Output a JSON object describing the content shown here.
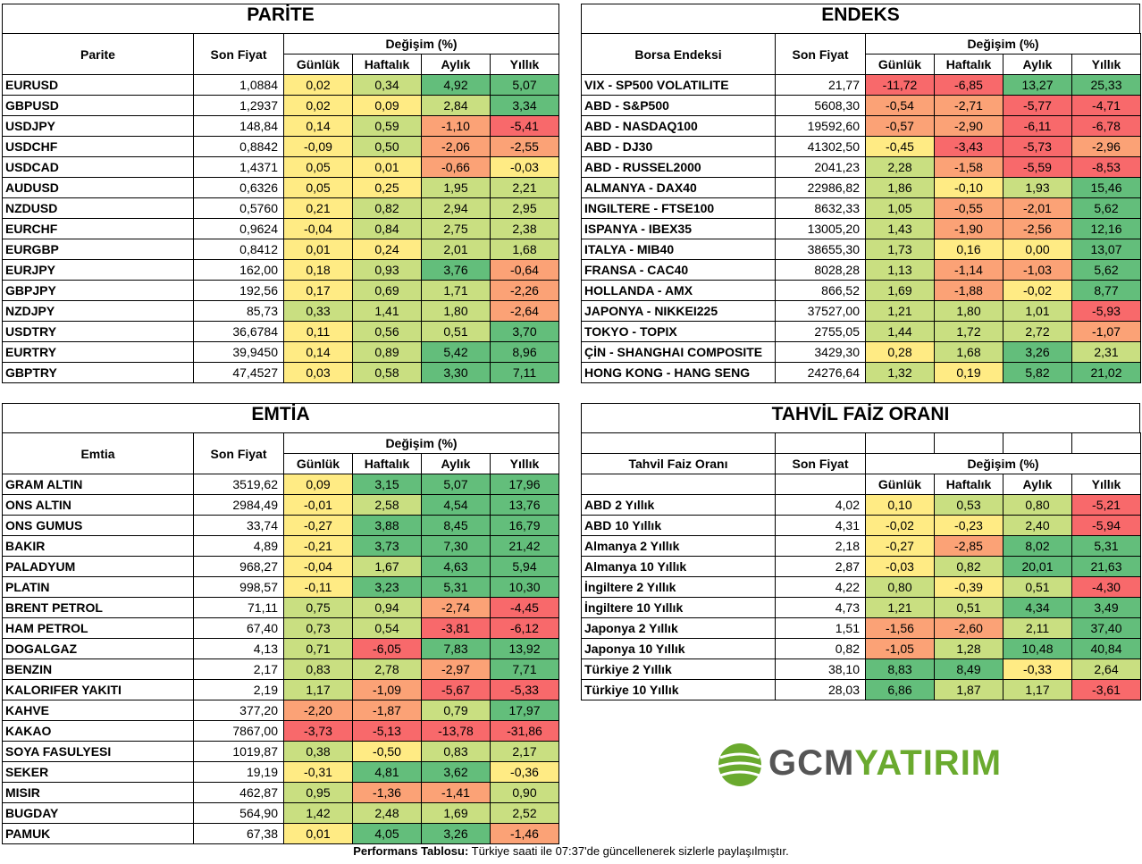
{
  "parite": {
    "title": "PARİTE",
    "headers": {
      "name": "Parite",
      "price": "Son Fiyat",
      "change": "Değişim (%)",
      "d": "Günlük",
      "w": "Haftalık",
      "m": "Aylık",
      "y": "Yıllık"
    },
    "rows": [
      [
        "EURUSD",
        "1,0884",
        "0,02",
        "0,34",
        "4,92",
        "5,07"
      ],
      [
        "GBPUSD",
        "1,2937",
        "0,02",
        "0,09",
        "2,84",
        "3,34"
      ],
      [
        "USDJPY",
        "148,84",
        "0,14",
        "0,59",
        "-1,10",
        "-5,41"
      ],
      [
        "USDCHF",
        "0,8842",
        "-0,09",
        "0,50",
        "-2,06",
        "-2,55"
      ],
      [
        "USDCAD",
        "1,4371",
        "0,05",
        "0,01",
        "-0,66",
        "-0,03"
      ],
      [
        "AUDUSD",
        "0,6326",
        "0,05",
        "0,25",
        "1,95",
        "2,21"
      ],
      [
        "NZDUSD",
        "0,5760",
        "0,21",
        "0,82",
        "2,94",
        "2,95"
      ],
      [
        "EURCHF",
        "0,9624",
        "-0,04",
        "0,84",
        "2,75",
        "2,38"
      ],
      [
        "EURGBP",
        "0,8412",
        "0,01",
        "0,24",
        "2,01",
        "1,68"
      ],
      [
        "EURJPY",
        "162,00",
        "0,18",
        "0,93",
        "3,76",
        "-0,64"
      ],
      [
        "GBPJPY",
        "192,56",
        "0,17",
        "0,69",
        "1,71",
        "-2,26"
      ],
      [
        "NZDJPY",
        "85,73",
        "0,33",
        "1,41",
        "1,80",
        "-2,64"
      ],
      [
        "USDTRY",
        "36,6784",
        "0,11",
        "0,56",
        "0,51",
        "3,70"
      ],
      [
        "EURTRY",
        "39,9450",
        "0,14",
        "0,89",
        "5,42",
        "8,96"
      ],
      [
        "GBPTRY",
        "47,4527",
        "0,03",
        "0,58",
        "3,30",
        "7,11"
      ]
    ]
  },
  "endeks": {
    "title": "ENDEKS",
    "headers": {
      "name": "Borsa Endeksi",
      "price": "Son Fiyat",
      "change": "Değişim (%)",
      "d": "Günlük",
      "w": "Haftalık",
      "m": "Aylık",
      "y": "Yıllık"
    },
    "rows": [
      [
        "VIX  - SP500 VOLATILITE",
        "21,77",
        "-11,72",
        "-6,85",
        "13,27",
        "25,33"
      ],
      [
        "ABD - S&P500",
        "5608,30",
        "-0,54",
        "-2,71",
        "-5,77",
        "-4,71"
      ],
      [
        "ABD - NASDAQ100",
        "19592,60",
        "-0,57",
        "-2,90",
        "-6,11",
        "-6,78"
      ],
      [
        "ABD - DJ30",
        "41302,50",
        "-0,45",
        "-3,43",
        "-5,73",
        "-2,96"
      ],
      [
        "ABD - RUSSEL2000",
        "2041,23",
        "2,28",
        "-1,58",
        "-5,59",
        "-8,53"
      ],
      [
        "ALMANYA - DAX40",
        "22986,82",
        "1,86",
        "-0,10",
        "1,93",
        "15,46"
      ],
      [
        "INGILTERE - FTSE100",
        "8632,33",
        "1,05",
        "-0,55",
        "-2,01",
        "5,62"
      ],
      [
        "ISPANYA - IBEX35",
        "13005,20",
        "1,43",
        "-1,90",
        "-2,56",
        "12,16"
      ],
      [
        "ITALYA - MIB40",
        "38655,30",
        "1,73",
        "0,16",
        "0,00",
        "13,07"
      ],
      [
        "FRANSA - CAC40",
        "8028,28",
        "1,13",
        "-1,14",
        "-1,03",
        "5,62"
      ],
      [
        "HOLLANDA - AMX",
        "866,52",
        "1,69",
        "-1,88",
        "-0,02",
        "8,77"
      ],
      [
        "JAPONYA - NIKKEI225",
        "37527,00",
        "1,21",
        "1,80",
        "1,01",
        "-5,93"
      ],
      [
        "TOKYO - TOPIX",
        "2755,05",
        "1,44",
        "1,72",
        "2,72",
        "-1,07"
      ],
      [
        "ÇİN - SHANGHAI COMPOSITE",
        "3429,30",
        "0,28",
        "1,68",
        "3,26",
        "2,31"
      ],
      [
        "HONG KONG - HANG SENG",
        "24276,64",
        "1,32",
        "0,19",
        "5,82",
        "21,02"
      ]
    ]
  },
  "emtia": {
    "title": "EMTİA",
    "headers": {
      "name": "Emtia",
      "price": "Son Fiyat",
      "change": "Değişim (%)",
      "d": "Günlük",
      "w": "Haftalık",
      "m": "Aylık",
      "y": "Yıllık"
    },
    "rows": [
      [
        "GRAM ALTIN",
        "3519,62",
        "0,09",
        "3,15",
        "5,07",
        "17,96"
      ],
      [
        "ONS ALTIN",
        "2984,49",
        "-0,01",
        "2,58",
        "4,54",
        "13,76"
      ],
      [
        "ONS GUMUS",
        "33,74",
        "-0,27",
        "3,88",
        "8,45",
        "16,79"
      ],
      [
        "BAKIR",
        "4,89",
        "-0,21",
        "3,73",
        "7,30",
        "21,42"
      ],
      [
        "PALADYUM",
        "968,27",
        "-0,04",
        "1,67",
        "4,63",
        "5,94"
      ],
      [
        "PLATIN",
        "998,57",
        "-0,11",
        "3,23",
        "5,31",
        "10,30"
      ],
      [
        "BRENT PETROL",
        "71,11",
        "0,75",
        "0,94",
        "-2,74",
        "-4,45"
      ],
      [
        "HAM PETROL",
        "67,40",
        "0,73",
        "0,54",
        "-3,81",
        "-6,12"
      ],
      [
        "DOGALGAZ",
        "4,13",
        "0,71",
        "-6,05",
        "7,83",
        "13,92"
      ],
      [
        "BENZIN",
        "2,17",
        "0,83",
        "2,78",
        "-2,97",
        "7,71"
      ],
      [
        "KALORIFER YAKITI",
        "2,19",
        "1,17",
        "-1,09",
        "-5,67",
        "-5,33"
      ],
      [
        "KAHVE",
        "377,20",
        "-2,20",
        "-1,87",
        "0,79",
        "17,97"
      ],
      [
        "KAKAO",
        "7867,00",
        "-3,73",
        "-5,13",
        "-13,78",
        "-31,86"
      ],
      [
        "SOYA FASULYESI",
        "1019,87",
        "0,38",
        "-0,50",
        "0,83",
        "2,17"
      ],
      [
        "SEKER",
        "19,19",
        "-0,31",
        "4,81",
        "3,62",
        "-0,36"
      ],
      [
        "MISIR",
        "462,87",
        "0,95",
        "-1,36",
        "-1,41",
        "0,90"
      ],
      [
        "BUGDAY",
        "564,90",
        "1,42",
        "2,48",
        "1,69",
        "2,52"
      ],
      [
        "PAMUK",
        "67,38",
        "0,01",
        "4,05",
        "3,26",
        "-1,46"
      ]
    ]
  },
  "tahvil": {
    "title": "TAHVİL FAİZ ORANI",
    "headers": {
      "name": "Tahvil Faiz Oranı",
      "price": "Son Fiyat",
      "change": "Değişim (%)",
      "d": "Günlük",
      "w": "Haftalık",
      "m": "Aylık",
      "y": "Yıllık"
    },
    "rows": [
      [
        "ABD 2 Yıllık",
        "4,02",
        "0,10",
        "0,53",
        "0,80",
        "-5,21"
      ],
      [
        "ABD 10 Yıllık",
        "4,31",
        "-0,02",
        "-0,23",
        "2,40",
        "-5,94"
      ],
      [
        "Almanya 2 Yıllık",
        "2,18",
        "-0,27",
        "-2,85",
        "8,02",
        "5,31"
      ],
      [
        "Almanya 10 Yıllık",
        "2,87",
        "-0,03",
        "0,82",
        "20,01",
        "21,63"
      ],
      [
        "İngiltere 2 Yıllık",
        "4,22",
        "0,80",
        "-0,39",
        "0,51",
        "-4,30"
      ],
      [
        "İngiltere 10 Yıllık",
        "4,73",
        "1,21",
        "0,51",
        "4,34",
        "3,49"
      ],
      [
        "Japonya 2 Yıllık",
        "1,51",
        "-1,56",
        "-2,60",
        "2,11",
        "37,40"
      ],
      [
        "Japonya 10 Yıllık",
        "0,82",
        "-1,05",
        "1,28",
        "10,48",
        "40,84"
      ],
      [
        "Türkiye 2 Yıllık",
        "38,10",
        "8,83",
        "8,49",
        "-0,33",
        "2,64"
      ],
      [
        "Türkiye 10 Yıllık",
        "28,03",
        "6,86",
        "1,87",
        "1,17",
        "-3,61"
      ]
    ]
  },
  "logo": {
    "part1": "GCM",
    "part2": "YATIRIM"
  },
  "footer": {
    "bold": "Performans Tablosu:",
    "text": " Türkiye saati ile 07:37'de güncellenerek sizlerle paylaşılmıştır."
  },
  "colors": {
    "red": "#f8696b",
    "orange": "#fba276",
    "yellow": "#ffeb84",
    "lightgreen": "#c9df81",
    "green": "#63be7b"
  }
}
